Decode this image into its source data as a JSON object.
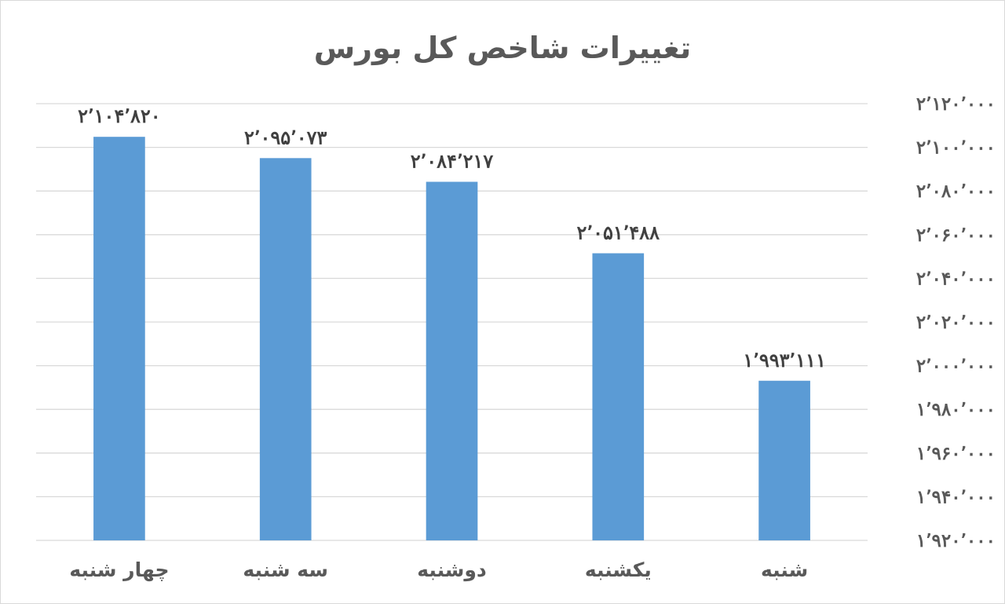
{
  "chart_data": {
    "type": "bar",
    "title": "تغییرات شاخص کل بورس",
    "categories": [
      "چهار شنبه",
      "سه شنبه",
      "دوشنبه",
      "یکشنبه",
      "شنبه"
    ],
    "series": [
      {
        "values": [
          2104820,
          2095073,
          2084217,
          2051488,
          1993111
        ],
        "data_labels": [
          "۲٬۱۰۴٬۸۲۰",
          "۲٬۰۹۵٬۰۷۳",
          "۲٬۰۸۴٬۲۱۷",
          "۲٬۰۵۱٬۴۸۸",
          "۱٬۹۹۳٬۱۱۱"
        ],
        "color": "#5b9bd5"
      }
    ],
    "ylim": [
      1920000,
      2120000
    ],
    "yticks": [
      1920000,
      1940000,
      1960000,
      1980000,
      2000000,
      2020000,
      2040000,
      2060000,
      2080000,
      2100000,
      2120000
    ],
    "ytick_labels": [
      "۱٬۹۲۰٬۰۰۰",
      "۱٬۹۴۰٬۰۰۰",
      "۱٬۹۶۰٬۰۰۰",
      "۱٬۹۸۰٬۰۰۰",
      "۲٬۰۰۰٬۰۰۰",
      "۲٬۰۲۰٬۰۰۰",
      "۲٬۰۴۰٬۰۰۰",
      "۲٬۰۶۰٬۰۰۰",
      "۲٬۰۸۰٬۰۰۰",
      "۲٬۱۰۰٬۰۰۰",
      "۲٬۱۲۰٬۰۰۰"
    ],
    "yaxis_position": "right",
    "grid": true,
    "legend": "none",
    "colors": {
      "bar": "#5b9bd5",
      "grid": "#d9d9d9",
      "text": "#595959"
    }
  }
}
